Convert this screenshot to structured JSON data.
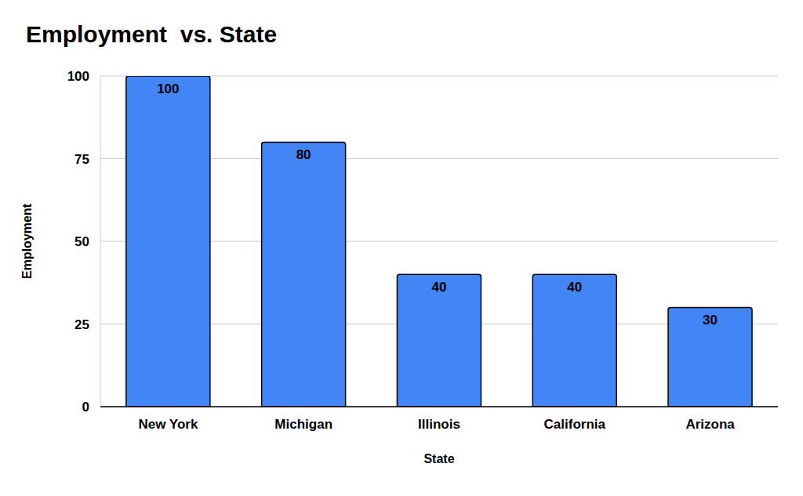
{
  "chart_data": {
    "type": "bar",
    "title": "Employment  vs. State",
    "xlabel": "State",
    "ylabel": "Employment",
    "categories": [
      "New York",
      "Michigan",
      "Illinois",
      "California",
      "Arizona"
    ],
    "values": [
      100,
      80,
      40,
      40,
      30
    ],
    "color": "#4285f4",
    "ylim": [
      0,
      100
    ],
    "yticks": [
      0,
      25,
      50,
      75,
      100
    ],
    "grid": true,
    "data_labels": true
  }
}
